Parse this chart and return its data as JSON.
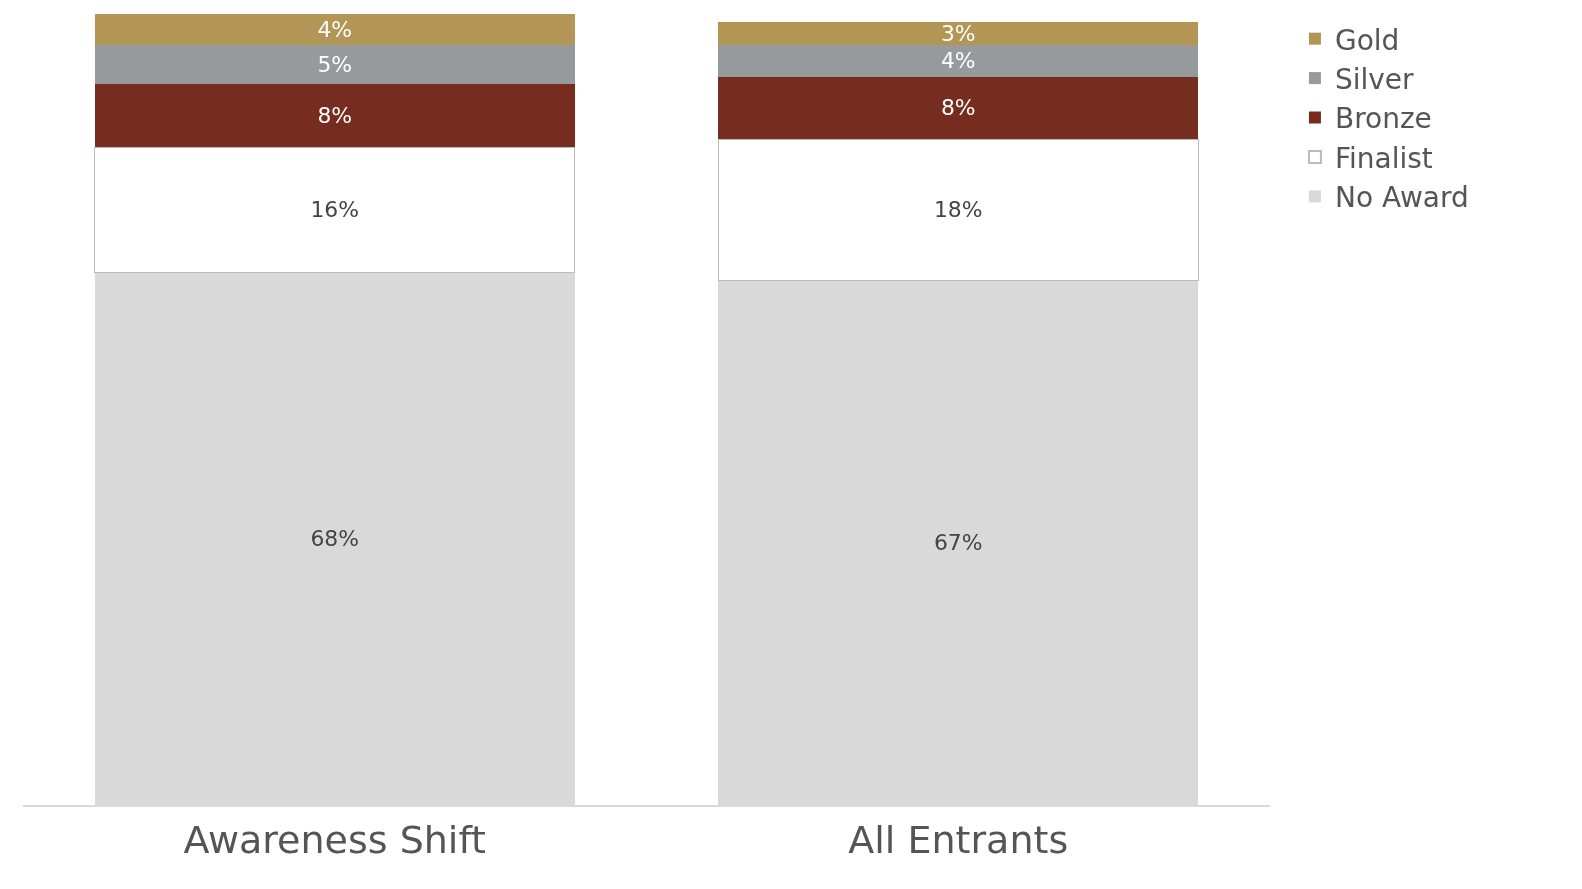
{
  "chart_data": {
    "type": "bar",
    "stacked": true,
    "categories": [
      "Awareness Shift",
      "All Entrants"
    ],
    "series": [
      {
        "name": "No Award",
        "color": "#d9d9d9",
        "values": [
          68,
          67
        ],
        "value_labels": [
          "68%",
          "67%"
        ]
      },
      {
        "name": "Finalist",
        "color": "#ffffff",
        "values": [
          16,
          18
        ],
        "value_labels": [
          "16%",
          "18%"
        ]
      },
      {
        "name": "Bronze",
        "color": "#762c1e",
        "values": [
          8,
          8
        ],
        "value_labels": [
          "8%",
          "8%"
        ]
      },
      {
        "name": "Silver",
        "color": "#969a9d",
        "values": [
          5,
          4
        ],
        "value_labels": [
          "5%",
          "4%"
        ]
      },
      {
        "name": "Gold",
        "color": "#b39656",
        "values": [
          4,
          3
        ],
        "value_labels": [
          "4%",
          "3%"
        ]
      }
    ],
    "legend": "right"
  }
}
